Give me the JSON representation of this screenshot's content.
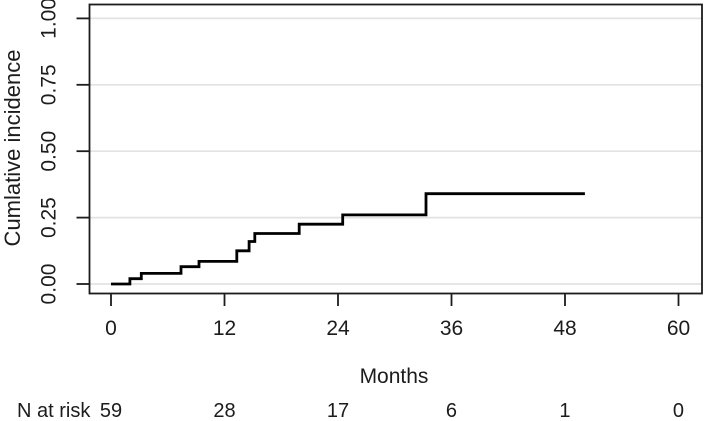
{
  "chart_data": {
    "type": "line",
    "subtype": "step-survival-curve",
    "title": "",
    "xlabel": "Months",
    "ylabel": "Cumlative incidence",
    "xlim": [
      0,
      60
    ],
    "ylim": [
      0,
      1.0
    ],
    "x_ticks": [
      0,
      12,
      24,
      36,
      48,
      60
    ],
    "x_tick_labels": [
      "0",
      "12",
      "24",
      "36",
      "48",
      "60"
    ],
    "y_tick_values": [
      0,
      0.25,
      0.5,
      0.75,
      1.0
    ],
    "y_tick_labels": [
      "0.00",
      "0.25",
      "0.50",
      "0.75",
      "1.00"
    ],
    "grid": "horizontal-only",
    "legend": "none",
    "series": [
      {
        "name": "cumulative-incidence",
        "color": "#000000",
        "step_points": [
          [
            0,
            0
          ],
          [
            2.0,
            0.02
          ],
          [
            3.2,
            0.04
          ],
          [
            7.4,
            0.065
          ],
          [
            9.3,
            0.085
          ],
          [
            13.3,
            0.125
          ],
          [
            14.6,
            0.16
          ],
          [
            15.2,
            0.19
          ],
          [
            19.9,
            0.225
          ],
          [
            24.5,
            0.26
          ],
          [
            33.3,
            0.34
          ]
        ],
        "end_month": 50.1,
        "final_value": 0.34
      }
    ],
    "risk_table": {
      "label": "N at risk",
      "times": [
        0,
        12,
        24,
        36,
        48,
        60
      ],
      "counts": [
        "59",
        "28",
        "17",
        "6",
        "1",
        "0"
      ]
    }
  },
  "colors": {
    "background": "#ffffff",
    "axis": "#1c1c1c",
    "text": "#1c1c1c",
    "gridline": "#e2e2e2",
    "curve": "#000000"
  }
}
